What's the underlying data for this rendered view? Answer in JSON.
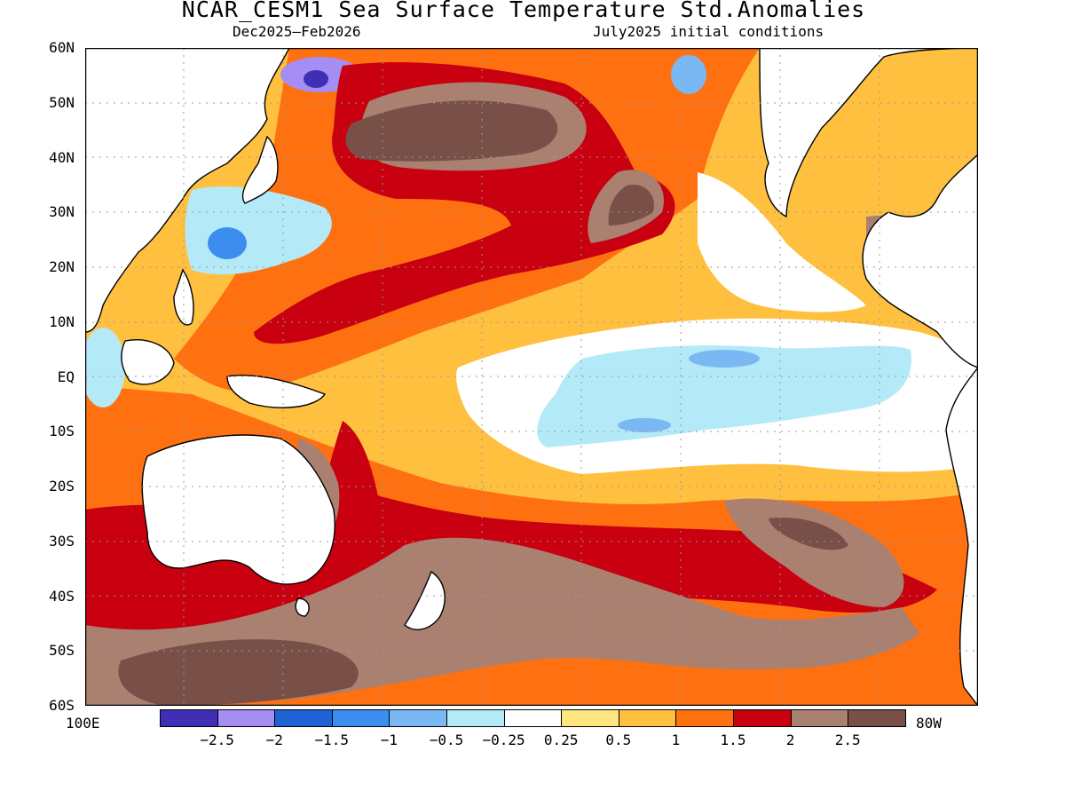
{
  "title": "NCAR_CESM1 Sea Surface Temperature Std.Anomalies",
  "subtitle_left": "Dec2025–Feb2026",
  "subtitle_right": "July2025 initial conditions",
  "lat_labels": [
    "60N",
    "50N",
    "40N",
    "30N",
    "20N",
    "10N",
    "EQ",
    "10S",
    "20S",
    "30S",
    "40S",
    "50S",
    "60S"
  ],
  "lon_left_label": "100E",
  "lon_right_label": "80W",
  "colorbar": {
    "colors": [
      "#3f2fb4",
      "#a48ef4",
      "#1f62d6",
      "#3b8ef0",
      "#7ab8f4",
      "#b4eaf8",
      "#ffffff",
      "#ffe680",
      "#ffc040",
      "#ff7010",
      "#c80010",
      "#aa8070",
      "#785048"
    ],
    "tick_labels": [
      "−2.5",
      "−2",
      "−1.5",
      "−1",
      "−0.5",
      "−0.25",
      "0.25",
      "0.5",
      "1",
      "1.5",
      "2",
      "2.5"
    ]
  }
}
